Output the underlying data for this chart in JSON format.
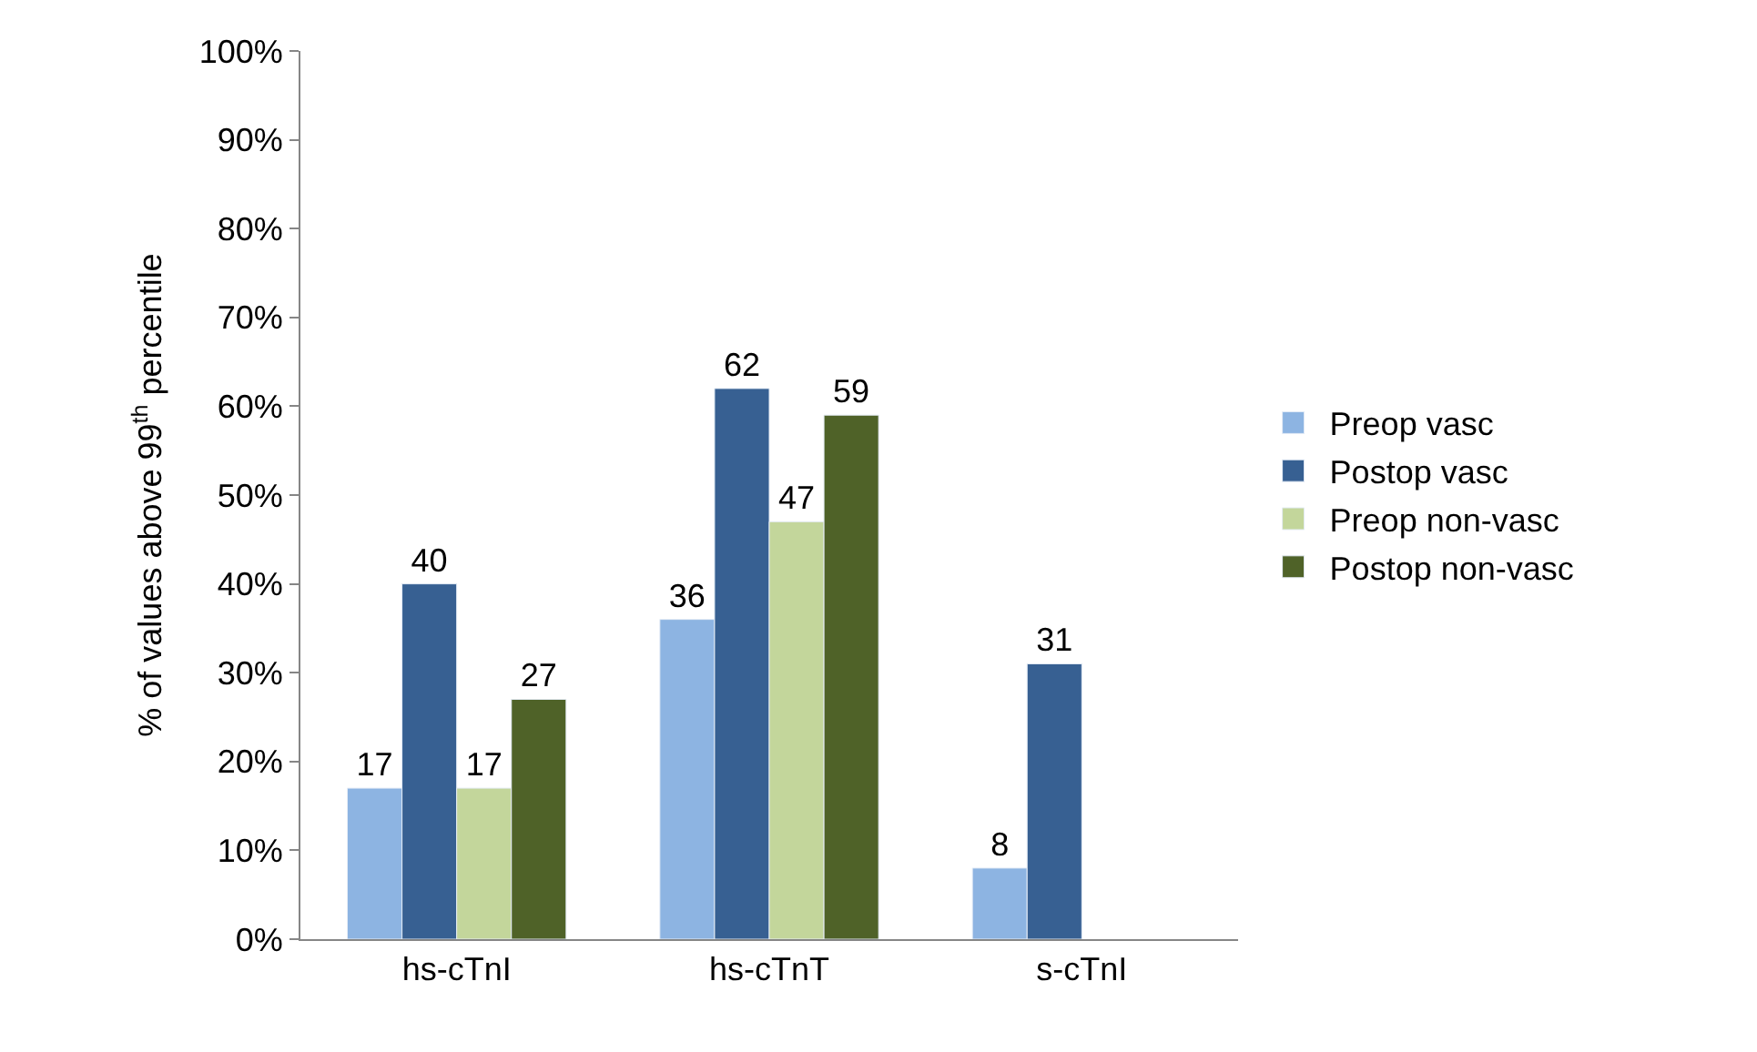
{
  "chart_data": {
    "type": "bar",
    "ylabel": "% of values above 99$^{th}$ percentile",
    "categories": [
      "hs-cTnI",
      "hs-cTnT",
      "s-cTnI"
    ],
    "series": [
      {
        "name": "Preop vasc",
        "color": "#8db4e2",
        "values": [
          17,
          36,
          8
        ]
      },
      {
        "name": "Postop vasc",
        "color": "#376092",
        "values": [
          40,
          62,
          31
        ]
      },
      {
        "name": "Preop non-vasc",
        "color": "#c3d69b",
        "values": [
          17,
          47,
          null
        ]
      },
      {
        "name": "Postop non-vasc",
        "color": "#4f6228",
        "values": [
          27,
          59,
          null
        ]
      }
    ],
    "ylim": [
      0,
      100
    ],
    "yticks": [
      {
        "value": 0,
        "label": "0%"
      },
      {
        "value": 10,
        "label": "10%"
      },
      {
        "value": 20,
        "label": "20%"
      },
      {
        "value": 30,
        "label": "30%"
      },
      {
        "value": 40,
        "label": "40%"
      },
      {
        "value": 50,
        "label": "50%"
      },
      {
        "value": 60,
        "label": "60%"
      },
      {
        "value": 70,
        "label": "70%"
      },
      {
        "value": 80,
        "label": "80%"
      },
      {
        "value": 90,
        "label": "90%"
      },
      {
        "value": 100,
        "label": "100%"
      }
    ],
    "data_labels": true,
    "legend": "right"
  }
}
